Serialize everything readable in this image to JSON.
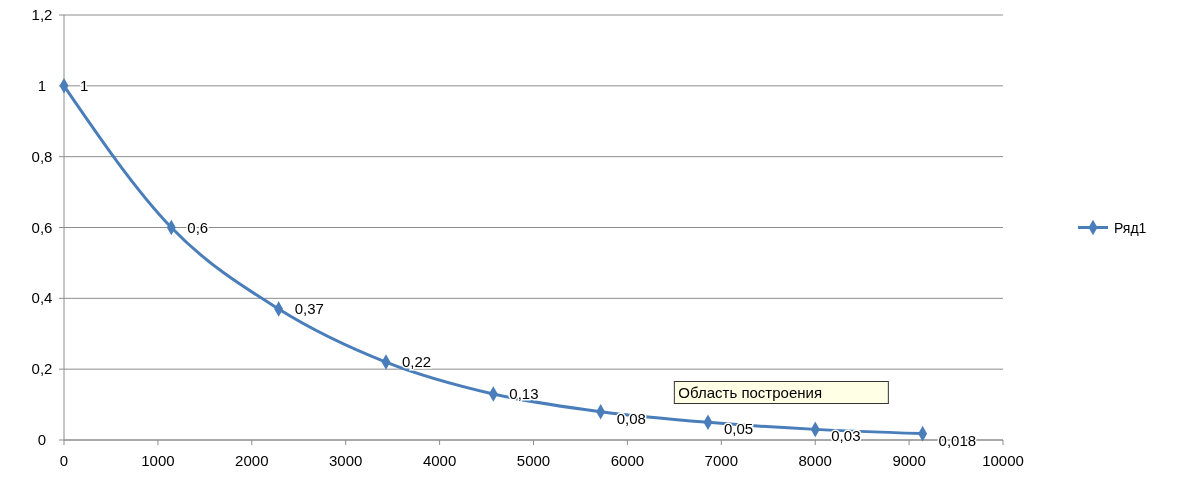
{
  "chart_data": {
    "type": "line",
    "x": [
      0,
      1143,
      2286,
      3429,
      4572,
      5715,
      6858,
      8001,
      9144
    ],
    "series": [
      {
        "name": "Ряд1",
        "color": "#4a7ebb",
        "values": [
          1,
          0.6,
          0.37,
          0.22,
          0.13,
          0.08,
          0.05,
          0.03,
          0.018
        ],
        "value_labels": [
          "1",
          "0,6",
          "0,37",
          "0,22",
          "0,13",
          "0,08",
          "0,05",
          "0,03",
          "0,018"
        ]
      }
    ],
    "xlim": [
      0,
      10000
    ],
    "xticks": [
      0,
      1000,
      2000,
      3000,
      4000,
      5000,
      6000,
      7000,
      8000,
      9000,
      10000
    ],
    "ylim": [
      0,
      1.2
    ],
    "yticks": [
      0,
      {
        "value": 0.2,
        "label": "0,2"
      },
      {
        "value": 0.4,
        "label": "0,4"
      },
      {
        "value": 0.6,
        "label": "0,6"
      },
      {
        "value": 0.8,
        "label": "0,8"
      },
      1,
      {
        "value": 1.2,
        "label": "1,2"
      }
    ],
    "grid": "y",
    "legend": "right",
    "marker": "diamond",
    "line_style": "solid",
    "annotations": [
      "Область построения"
    ]
  }
}
